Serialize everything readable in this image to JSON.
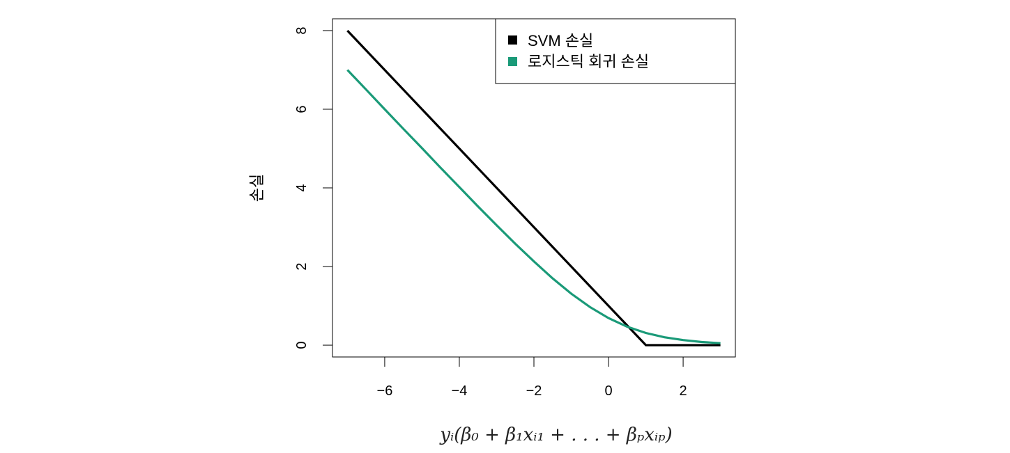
{
  "chart_data": {
    "type": "line",
    "title": "",
    "xlabel": "yᵢ(β₀ + β₁xᵢ₁ + . . . + βₚxᵢₚ)",
    "ylabel": "손실",
    "xlim": [
      -7.4,
      3.4
    ],
    "ylim": [
      -0.3,
      8.3
    ],
    "x_ticks": [
      -6,
      -4,
      -2,
      0,
      2
    ],
    "x_tick_labels": [
      "−6",
      "−4",
      "−2",
      "0",
      "2"
    ],
    "y_ticks": [
      0,
      2,
      4,
      6,
      8
    ],
    "y_tick_labels": [
      "0",
      "2",
      "4",
      "6",
      "8"
    ],
    "grid": false,
    "legend_position": "top-right",
    "series": [
      {
        "name": "SVM 손실",
        "color": "#000000",
        "x": [
          -7,
          -6,
          -5,
          -4,
          -3,
          -2,
          -1,
          0,
          1,
          2,
          3
        ],
        "y": [
          8,
          7,
          6,
          5,
          4,
          3,
          2,
          1,
          0,
          0,
          0
        ]
      },
      {
        "name": "로지스틱 회귀 손실",
        "color": "#1a9a78",
        "x": [
          -7,
          -6.5,
          -6,
          -5.5,
          -5,
          -4.5,
          -4,
          -3.5,
          -3,
          -2.5,
          -2,
          -1.5,
          -1,
          -0.5,
          0,
          0.5,
          1,
          1.5,
          2,
          2.5,
          3
        ],
        "y": [
          7.0,
          6.5,
          6.0,
          5.5,
          5.01,
          4.51,
          4.02,
          3.53,
          3.05,
          2.58,
          2.13,
          1.7,
          1.31,
          0.97,
          0.69,
          0.47,
          0.31,
          0.2,
          0.13,
          0.08,
          0.05
        ]
      }
    ]
  }
}
